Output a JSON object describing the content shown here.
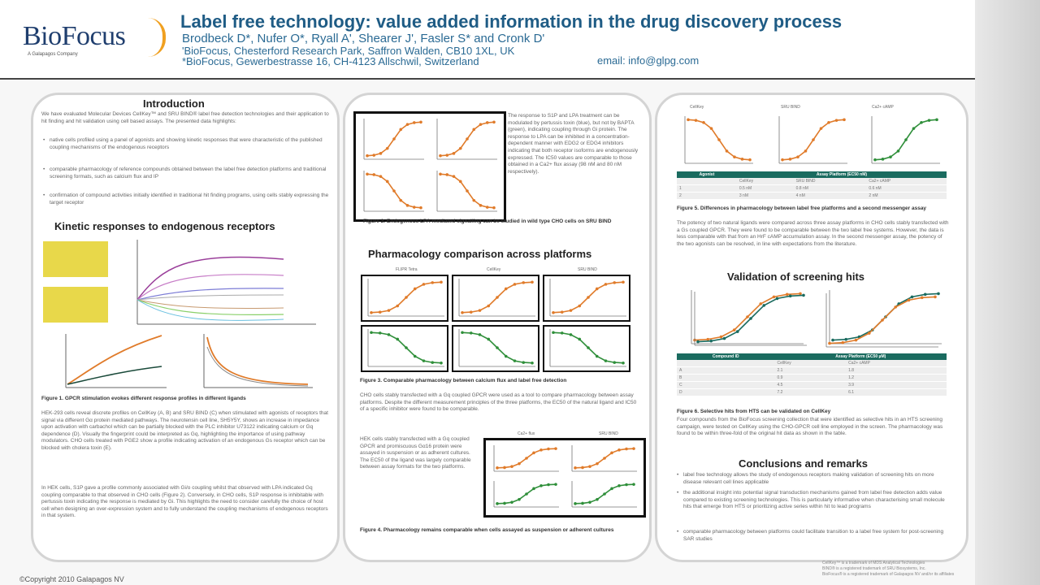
{
  "header": {
    "logo_text": "BioFocus",
    "logo_sub": "A Galapagos Company",
    "title": "Label free technology: value added information in the drug discovery process",
    "authors": "Brodbeck D*, Nufer O*, Ryall A', Shearer J', Fasler S* and Cronk D'",
    "affiliation1": "'BioFocus, Chesterford Research Park, Saffron Walden, CB10 1XL, UK",
    "affiliation2": "*BioFocus, Gewerbestrasse 16, CH-4123 Allschwil, Switzerland",
    "email": "email: info@glpg.com"
  },
  "col1": {
    "intro_heading": "Introduction",
    "intro_text": "We have evaluated Molecular Devices CellKey™ and SRU BIND® label free detection technologies and their application to hit finding and hit validation using cell based assays. The presented data highlights:",
    "intro_bullets": [
      "native cells profiled using a panel of agonists and showing kinetic responses that were characteristic of the published coupling mechanisms of the endogenous receptors",
      "comparable pharmacology of reference compounds obtained between the label free detection platforms and traditional screening formats, such as calcium flux and IP",
      "confirmation of compound activities initially identified in traditional hit finding programs, using cells stably expressing the target receptor"
    ],
    "kinetic_heading": "Kinetic responses to endogenous receptors",
    "fig1_caption": "Figure 1. GPCR stimulation evokes different response profiles in different ligands",
    "fig1_text": "HEK-293 cells reveal discrete profiles on CellKey (A, B) and SRU BIND (C) when stimulated with agonists of receptors that signal via different Gα protein mediated pathways. The neurotensin cell line, SH5Y5Y, shows an increase in impedance upon activation with carbachol which can be partially blocked with the PLC inhibitor U73122 indicating calcium or Gq dependence (D). Visually the fingerprint could be interpreted as Gq, highlighting the importance of using pathway modulators. CHO cells treated with PGE2 show a profile indicating activation of an endogenous Gs receptor which can be blocked with cholera toxin (E).",
    "fig1_text2": "In HEK cells, S1P gave a profile commonly associated with Gi/o coupling whilst that observed with LPA indicated Gq coupling comparable to that observed in CHO cells (Figure 2). Conversely, in CHO cells, S1P response is inhibitable with pertussis toxin indicating the response is mediated by Gi. This highlights the need to consider carefully the choice of host cell when designing an over-expression system and to fully understand the coupling mechanisms of endogenous receptors in that system."
  },
  "col2": {
    "fig2_text": "The response to S1P and LPA treatment can be modulated by pertussis toxin (blue), but not by BAPTA (green), indicating coupling through Gi protein. The response to LPA can be inhibited in a concentration-dependent manner with EDG2 or EDG4 inhibitors indicating that both receptor isoforms are endogenously expressed. The IC50 values are comparable to those obtained in a Ca2+ flux assay (98 nM and 80 nM respectively).",
    "fig2_caption": "Figure 2. Endogenous LPA-mediated signalling can be studied in wild type CHO cells on SRU BIND",
    "pharm_heading": "Pharmacology comparison across platforms",
    "platform_labels": [
      "FLIPR Tetra",
      "CellKey",
      "SRU BIND"
    ],
    "fig3_caption": "Figure 3. Comparable pharmacology between calcium flux and label free detection",
    "fig3_text": "CHO cells stably transfected with a Gq coupled GPCR were used as a tool to compare pharmacology between assay platforms. Despite the different measurement principles of the three platforms, the EC50 of the natural ligand and IC50 of a specific inhibitor were found to be comparable.",
    "fig4_side_text": "HEK cells stably transfected with a Gq coupled GPCR and promiscuous Gα16 protein were assayed in suspension or as adherent cultures. The EC50 of the ligand was largely comparable between assay formats for the two platforms.",
    "fig4_labels": [
      "Ca2+ flux",
      "SRU BIND"
    ],
    "fig4_caption": "Figure 4. Pharmacology remains comparable when cells assayed as suspension or adherent cultures"
  },
  "col3": {
    "chart_labels": [
      "CellKey",
      "SRU BIND",
      "Ca2+ cAMP"
    ],
    "table1": {
      "headers": [
        "Agonist",
        "Assay Platform (EC50 nM)"
      ],
      "subheaders": [
        "",
        "CellKey",
        "SRU BIND",
        "Ca2+ cAMP"
      ],
      "rows": [
        [
          "1",
          "0.5 nM",
          "0.8 nM",
          "0.6 nM"
        ],
        [
          "2",
          "3 nM",
          "4 nM",
          "2 nM"
        ]
      ]
    },
    "fig5_caption": "Figure 5. Differences in pharmacology between label free platforms and a second messenger assay",
    "fig5_text": "The potency of two natural ligands were compared across three assay platforms in CHO cells stably transfected with a Gs coupled GPCR. They were found to be comparable between the two label free systems. However, the data is less comparable with that from an HrF cAMP accumulation assay. In the second messenger assay, the potency of the two agonists can be resolved, in line with expectations from the literature.",
    "validation_heading": "Validation of screening hits",
    "table2": {
      "headers": [
        "Compound ID",
        "Assay Platform (EC50 µM)"
      ],
      "subheaders": [
        "",
        "CellKey",
        "Ca2+ cAMP"
      ],
      "rows": [
        [
          "A",
          "2.1",
          "1.8"
        ],
        [
          "B",
          "0.9",
          "1.2"
        ],
        [
          "C",
          "4.5",
          "3.9"
        ],
        [
          "D",
          "7.2",
          "6.1"
        ]
      ]
    },
    "fig6_caption": "Figure 6. Selective hits from HTS can be validated on CellKey",
    "fig6_text": "Four compounds from the BioFocus screening collection that were identified as selective hits in an HTS screening campaign, were tested on CellKey using the CHO-GPCR cell line employed in the screen. The pharmacology was found to be within three-fold of the original hit data as shown in the table.",
    "conclusions_heading": "Conclusions and remarks",
    "conclusion_bullets": [
      "label free technology allows the study of endogenous receptors making validation of screening hits on more disease relevant cell lines applicable",
      "the additional insight into potential signal transduction mechanisms gained from label free detection adds value compared to existing screening technologies. This is particularly informative when characterising small molecule hits that emerge from HTS or prioritizing active series within hit to lead programs",
      "comparable pharmacology between platforms could facilitate transition to a label free system for post-screening SAR studies"
    ],
    "trademarks": [
      "CellKey™ is a trademark of MDS Analytical Technologies",
      "BIND® is a registered trademark of SRU Biosystems, Inc.",
      "BioFocus® is a registered trademark of Galapagos NV and/or its affiliates"
    ]
  },
  "footer": {
    "copyright": "©Copyright  2010 Galapagos NV"
  },
  "colors": {
    "orange": "#e07b2a",
    "green": "#2f8f3a",
    "teal": "#1a6b5f",
    "title_blue": "#1f5c85"
  }
}
